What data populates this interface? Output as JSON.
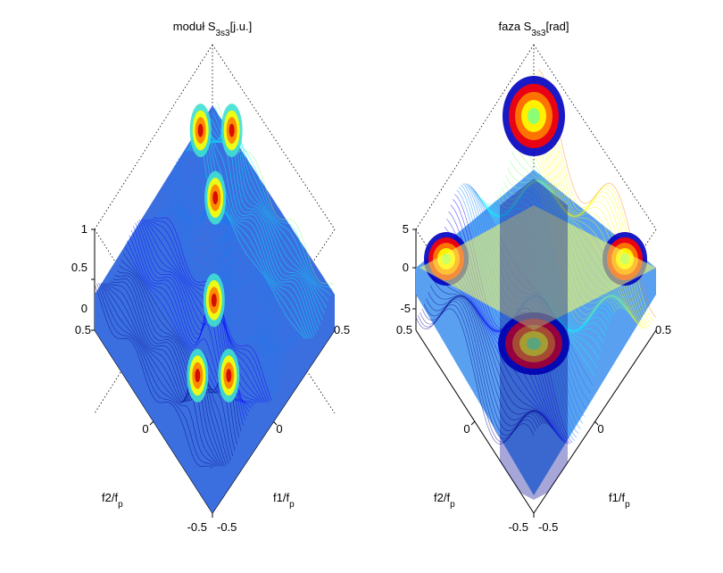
{
  "figure": {
    "background": "#ffffff",
    "colormap": [
      "#00008f",
      "#0000ff",
      "#0080ff",
      "#00ffff",
      "#80ff80",
      "#ffff00",
      "#ff8000",
      "#ff0000",
      "#800000"
    ]
  },
  "chart_data": [
    {
      "type": "surface",
      "title_main": "moduł S",
      "title_sub": "3s3",
      "title_unit": "[j.u.]",
      "xlabel_main": "f1/f",
      "xlabel_sub": "p",
      "ylabel_main": "f2/f",
      "ylabel_sub": "p",
      "x_ticks": [
        "-0.5",
        "0",
        "0.5"
      ],
      "y_ticks": [
        "-0.5",
        "0",
        "0.5"
      ],
      "z_ticks": [
        "0",
        "0.5",
        "1"
      ],
      "xlim": [
        -0.5,
        0.5
      ],
      "ylim": [
        -0.5,
        0.5
      ],
      "zlim": [
        0,
        1
      ],
      "grid": true,
      "peaks": [
        {
          "x": 0.14,
          "y": 0.14,
          "z": 1.0
        },
        {
          "x": 0.4,
          "y": 0.27,
          "z": 1.0
        },
        {
          "x": 0.27,
          "y": 0.4,
          "z": 1.0
        },
        {
          "x": -0.14,
          "y": -0.14,
          "z": 1.0
        },
        {
          "x": -0.4,
          "y": -0.27,
          "z": 1.0
        },
        {
          "x": -0.27,
          "y": -0.4,
          "z": 1.0
        }
      ]
    },
    {
      "type": "surface",
      "title_main": "faza S",
      "title_sub": "3s3",
      "title_unit": "[rad]",
      "xlabel_main": "f1/f",
      "xlabel_sub": "p",
      "ylabel_main": "f2/f",
      "ylabel_sub": "p",
      "x_ticks": [
        "-0.5",
        "0",
        "0.5"
      ],
      "y_ticks": [
        "-0.5",
        "0",
        "0.5"
      ],
      "z_ticks": [
        "-5",
        "0",
        "5"
      ],
      "xlim": [
        -0.5,
        0.5
      ],
      "ylim": [
        -0.5,
        0.5
      ],
      "zlim": [
        -5,
        5
      ],
      "grid": true
    }
  ]
}
